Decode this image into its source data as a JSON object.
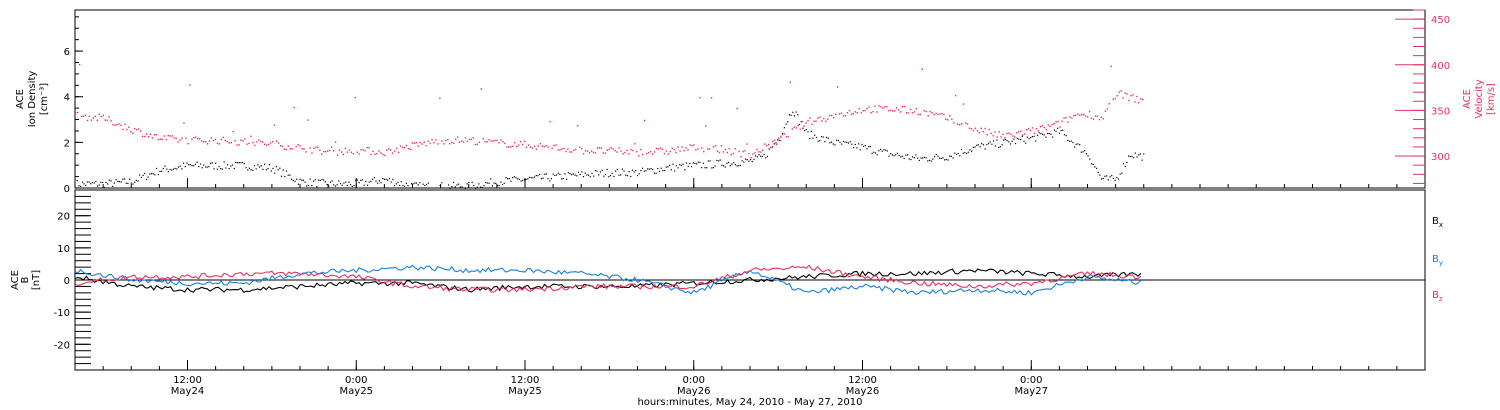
{
  "chart_data": [
    {
      "type": "scatter",
      "panel": "top",
      "ylabel_left": [
        "ACE",
        "Ion Density",
        "[cm⁻³]"
      ],
      "ylabel_right": [
        "ACE",
        "Velocity",
        "[km/s]"
      ],
      "ylim_left": [
        0,
        7.8
      ],
      "ylim_right": [
        265,
        460
      ],
      "yticks_left": [
        0,
        2,
        4,
        6
      ],
      "yticks_right": [
        300,
        350,
        400,
        450
      ],
      "series": [
        {
          "axis": "left",
          "color": "#000000",
          "x_hours": [
            0,
            2,
            4,
            6,
            8,
            10,
            12,
            14,
            16,
            18,
            20,
            22,
            24,
            26,
            28,
            30,
            32,
            34,
            36,
            38,
            40,
            42,
            44,
            46,
            48,
            49,
            50,
            51,
            52,
            54,
            56,
            58,
            60,
            62,
            64,
            66,
            68,
            70,
            72,
            73,
            74,
            75,
            76
          ],
          "values": [
            0.2,
            0.2,
            0.3,
            0.8,
            1.0,
            1.0,
            1.0,
            0.9,
            0.3,
            0.2,
            0.2,
            0.4,
            0.1,
            0.1,
            0.1,
            0.3,
            0.4,
            0.5,
            0.6,
            0.7,
            0.7,
            0.9,
            1.0,
            1.1,
            1.2,
            1.4,
            2.2,
            3.5,
            2.4,
            2.0,
            1.8,
            1.5,
            1.3,
            1.4,
            1.8,
            2.0,
            2.2,
            2.5,
            1.5,
            0.4,
            0.4,
            1.5,
            1.4
          ]
        },
        {
          "axis": "right",
          "color": "#e8305f",
          "x_hours": [
            0,
            2,
            4,
            6,
            8,
            10,
            12,
            14,
            16,
            18,
            20,
            22,
            24,
            26,
            28,
            30,
            32,
            34,
            36,
            38,
            40,
            42,
            44,
            46,
            48,
            50,
            52,
            54,
            56,
            58,
            60,
            62,
            64,
            66,
            68,
            70,
            71,
            72,
            73,
            74,
            75,
            76
          ],
          "values": [
            345,
            342,
            330,
            320,
            318,
            318,
            316,
            314,
            310,
            305,
            307,
            305,
            312,
            318,
            318,
            315,
            313,
            310,
            307,
            306,
            305,
            306,
            310,
            308,
            302,
            318,
            338,
            345,
            352,
            352,
            350,
            342,
            330,
            322,
            328,
            336,
            345,
            347,
            342,
            370,
            365,
            361
          ]
        }
      ]
    },
    {
      "type": "line",
      "panel": "bottom",
      "ylabel": [
        "ACE",
        "B",
        "[nT]"
      ],
      "ylim": [
        -28,
        28
      ],
      "yticks": [
        -20,
        -10,
        0,
        10,
        20
      ],
      "legend": [
        {
          "label": "B",
          "sub": "x",
          "color": "#000000"
        },
        {
          "label": "B",
          "sub": "y",
          "color": "#1a7fe0"
        },
        {
          "label": "B",
          "sub": "z",
          "color": "#e8305f"
        }
      ],
      "x_hours": [
        0,
        4,
        8,
        12,
        16,
        20,
        24,
        28,
        32,
        36,
        40,
        44,
        48,
        52,
        56,
        60,
        64,
        68,
        72,
        76
      ],
      "series": [
        {
          "name": "Bx",
          "color": "#000000",
          "values": [
            1,
            -2,
            -3,
            -3,
            -2,
            -1,
            -1,
            -3,
            -2,
            -2,
            -2,
            -1,
            0,
            1,
            2,
            2,
            3,
            2,
            1,
            2
          ]
        },
        {
          "name": "By",
          "color": "#1a7fe0",
          "values": [
            3,
            0,
            -1,
            -1,
            2,
            3,
            4,
            3,
            3,
            2,
            0,
            -4,
            3,
            -4,
            -2,
            -4,
            -3,
            -4,
            1,
            -1
          ]
        },
        {
          "name": "Bz",
          "color": "#e8305f",
          "values": [
            -1,
            1,
            1,
            2,
            2,
            1,
            -2,
            -3,
            -3,
            -2,
            -2,
            -2,
            3,
            4,
            1,
            -1,
            -2,
            -1,
            2,
            1
          ]
        }
      ]
    }
  ],
  "x_axis": {
    "xlim_hours": [
      0,
      96
    ],
    "ticks": [
      {
        "h": 8,
        "time": "12:00",
        "date": "May24"
      },
      {
        "h": 20,
        "time": "0:00",
        "date": "May25"
      },
      {
        "h": 32,
        "time": "12:00",
        "date": "May25"
      },
      {
        "h": 44,
        "time": "0:00",
        "date": "May26"
      },
      {
        "h": 56,
        "time": "12:00",
        "date": "May26"
      },
      {
        "h": 68,
        "time": "0:00",
        "date": "May27"
      }
    ],
    "label": "hours:minutes, May 24, 2010 - May 27, 2010"
  },
  "colors": {
    "density": "#000000",
    "velocity": "#e8305f",
    "bx": "#000000",
    "by": "#1a7fe0",
    "bz": "#e8305f"
  }
}
